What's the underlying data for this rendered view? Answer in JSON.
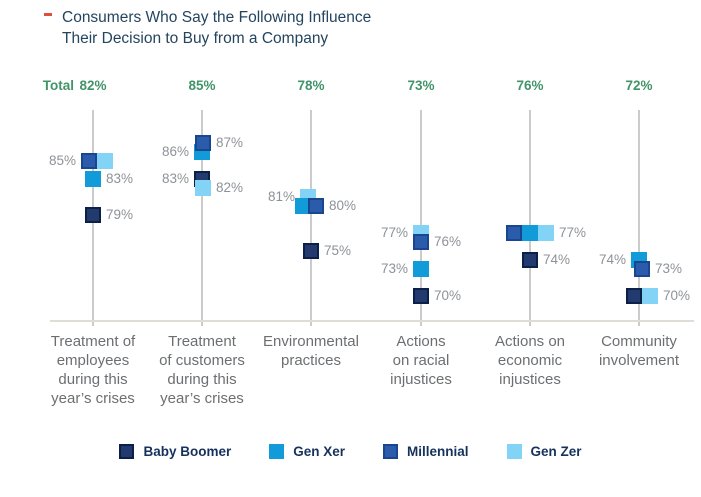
{
  "title": "Consumers Who Say the Following Influence\nTheir Decision to Buy from a Company",
  "total_label": "Total",
  "chart_data": {
    "type": "scatter",
    "title": "Consumers Who Say the Following Influence Their Decision to Buy from a Company",
    "value_format": "percent",
    "ylim": [
      68,
      90
    ],
    "grid": "vertical-category-lines",
    "legend_position": "bottom",
    "total_row_color": "#419468",
    "generations": {
      "baby-boomer": {
        "label": "Baby Boomer",
        "fill": "#223a6d",
        "border": "#0b2047"
      },
      "gen-x": {
        "label": "Gen Xer",
        "fill": "#119bd9",
        "border": "#119bd9"
      },
      "millennial": {
        "label": "Millennial",
        "fill": "#2b5cab",
        "border": "#1a458f"
      },
      "gen-z": {
        "label": "Gen Zer",
        "fill": "#82d3f5",
        "border": "#82d3f5"
      }
    },
    "legend_order": [
      "baby-boomer",
      "gen-x",
      "millennial",
      "gen-z"
    ],
    "categories": [
      {
        "label": "Treatment of\nemployees\nduring this\nyear’s crises",
        "total": "82%",
        "points": [
          {
            "gen": "millennial",
            "value": 85,
            "label": "85%",
            "label_side": "left",
            "dx": -4
          },
          {
            "gen": "gen-z",
            "value": 85,
            "label": null,
            "label_side": null,
            "dx": 12
          },
          {
            "gen": "gen-x",
            "value": 83,
            "label": "83%",
            "label_side": "right",
            "dx": 0
          },
          {
            "gen": "baby-boomer",
            "value": 79,
            "label": "79%",
            "label_side": "right",
            "dx": 0
          }
        ]
      },
      {
        "label": "Treatment\nof customers\nduring this\nyear’s crises",
        "total": "85%",
        "points": [
          {
            "gen": "gen-x",
            "value": 86,
            "label": "86%",
            "label_side": "left",
            "dx": 0
          },
          {
            "gen": "millennial",
            "value": 87,
            "label": "87%",
            "label_side": "right",
            "dx": 1
          },
          {
            "gen": "baby-boomer",
            "value": 83,
            "label": "83%",
            "label_side": "left",
            "dx": 0
          },
          {
            "gen": "gen-z",
            "value": 82,
            "label": "82%",
            "label_side": "right",
            "dx": 1
          }
        ]
      },
      {
        "label": "Environmental\npractices",
        "total": "78%",
        "points": [
          {
            "gen": "gen-z",
            "value": 81,
            "label": "81%",
            "label_side": "left",
            "dx": -3
          },
          {
            "gen": "gen-x",
            "value": 80,
            "label": null,
            "label_side": null,
            "dx": -8
          },
          {
            "gen": "millennial",
            "value": 80,
            "label": "80%",
            "label_side": "right",
            "dx": 5
          },
          {
            "gen": "baby-boomer",
            "value": 75,
            "label": "75%",
            "label_side": "right",
            "dx": 0
          }
        ]
      },
      {
        "label": "Actions\non racial\ninjustices",
        "total": "73%",
        "points": [
          {
            "gen": "gen-z",
            "value": 77,
            "label": "77%",
            "label_side": "left",
            "dx": 0
          },
          {
            "gen": "millennial",
            "value": 76,
            "label": "76%",
            "label_side": "right",
            "dx": 0
          },
          {
            "gen": "gen-x",
            "value": 73,
            "label": "73%",
            "label_side": "left",
            "dx": 0
          },
          {
            "gen": "baby-boomer",
            "value": 70,
            "label": "70%",
            "label_side": "right",
            "dx": 0
          }
        ]
      },
      {
        "label": "Actions on\neconomic\ninjustices",
        "total": "76%",
        "points": [
          {
            "gen": "millennial",
            "value": 77,
            "label": null,
            "label_side": null,
            "dx": -16
          },
          {
            "gen": "gen-x",
            "value": 77,
            "label": null,
            "label_side": null,
            "dx": 0
          },
          {
            "gen": "gen-z",
            "value": 77,
            "label": "77%",
            "label_side": "right",
            "dx": 16
          },
          {
            "gen": "baby-boomer",
            "value": 74,
            "label": "74%",
            "label_side": "right",
            "dx": 0
          }
        ]
      },
      {
        "label": "Community\ninvolvement",
        "total": "72%",
        "points": [
          {
            "gen": "gen-x",
            "value": 74,
            "label": "74%",
            "label_side": "left",
            "dx": 0
          },
          {
            "gen": "millennial",
            "value": 73,
            "label": "73%",
            "label_side": "right",
            "dx": 3
          },
          {
            "gen": "baby-boomer",
            "value": 70,
            "label": null,
            "label_side": null,
            "dx": -5
          },
          {
            "gen": "gen-z",
            "value": 70,
            "label": "70%",
            "label_side": "right",
            "dx": 11
          }
        ]
      }
    ]
  }
}
